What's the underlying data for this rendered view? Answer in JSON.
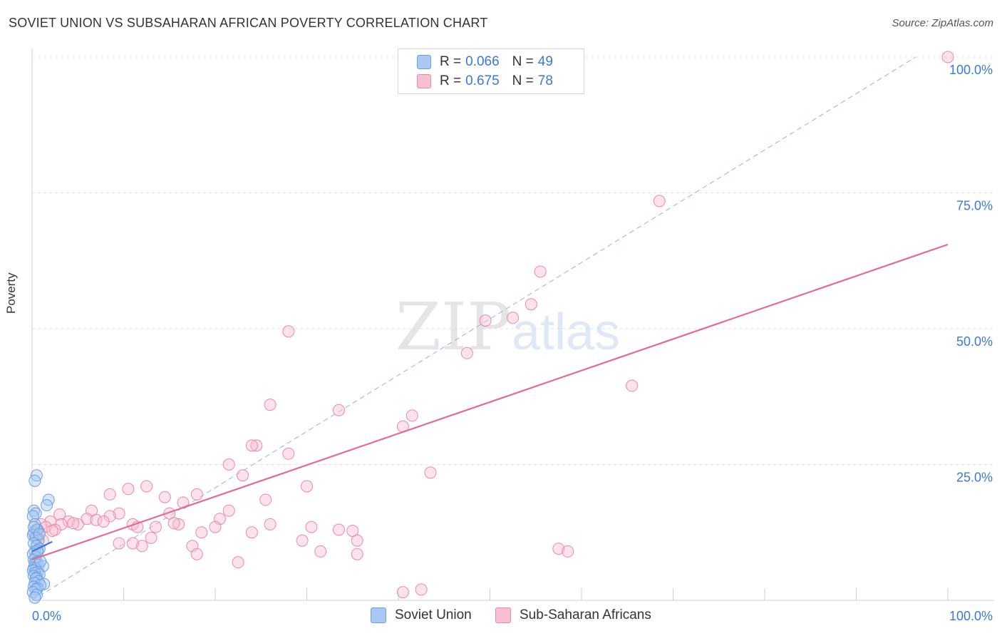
{
  "header": {
    "title": "SOVIET UNION VS SUBSAHARAN AFRICAN POVERTY CORRELATION CHART",
    "source": "Source: ZipAtlas.com"
  },
  "watermark": {
    "zip": "ZIP",
    "atlas": "atlas"
  },
  "legend": {
    "rows": [
      {
        "r_label": "R =",
        "r_value": "0.066",
        "n_label": "N =",
        "n_value": "49",
        "color": "#a9c8f3",
        "stroke": "#6b9fe0"
      },
      {
        "r_label": "R =",
        "r_value": "0.675",
        "n_label": "N =",
        "n_value": "78",
        "color": "#f8bfd0",
        "stroke": "#e88aa8"
      }
    ]
  },
  "bottom_legend": {
    "items": [
      {
        "label": "Soviet Union",
        "color": "#a9c8f3",
        "stroke": "#6b9fe0"
      },
      {
        "label": "Sub-Saharan Africans",
        "color": "#f8bfd0",
        "stroke": "#e88aa8"
      }
    ]
  },
  "chart_data": {
    "type": "scatter",
    "title": "SOVIET UNION VS SUBSAHARAN AFRICAN POVERTY CORRELATION CHART",
    "xlabel": "",
    "ylabel": "Poverty",
    "xlim": [
      0,
      100
    ],
    "ylim": [
      0,
      100
    ],
    "x_tick_labels": [
      "0.0%",
      "100.0%"
    ],
    "y_tick_labels": [
      "25.0%",
      "50.0%",
      "75.0%",
      "100.0%"
    ],
    "y_ticks": [
      25,
      50,
      75,
      100
    ],
    "grid": true,
    "colors": {
      "soviet": "#6b9fe0",
      "soviet_fill": "rgba(169,200,243,0.45)",
      "ssa": "#e88aa8",
      "ssa_fill": "rgba(248,191,208,0.45)",
      "ssa_line": "#e26b94",
      "soviet_line": "#3b78d6",
      "diag": "#8fb3ea",
      "tick_label": "#3b78d6"
    },
    "series": [
      {
        "name": "Soviet Union",
        "points": [
          [
            0.5,
            23.0
          ],
          [
            0.3,
            22.0
          ],
          [
            1.8,
            18.5
          ],
          [
            1.6,
            17.5
          ],
          [
            0.2,
            16.5
          ],
          [
            0.4,
            16.0
          ],
          [
            0.1,
            15.5
          ],
          [
            0.3,
            14.0
          ],
          [
            0.5,
            13.0
          ],
          [
            0.2,
            12.5
          ],
          [
            0.6,
            13.0
          ],
          [
            0.1,
            12.0
          ],
          [
            0.4,
            11.5
          ],
          [
            0.7,
            11.0
          ],
          [
            0.2,
            10.5
          ],
          [
            0.5,
            10.0
          ],
          [
            0.8,
            9.5
          ],
          [
            0.3,
            9.0
          ],
          [
            0.6,
            8.8
          ],
          [
            0.1,
            8.5
          ],
          [
            0.4,
            8.0
          ],
          [
            0.2,
            7.5
          ],
          [
            0.5,
            7.0
          ],
          [
            0.3,
            6.8
          ],
          [
            0.7,
            6.5
          ],
          [
            1.2,
            6.3
          ],
          [
            0.2,
            6.0
          ],
          [
            0.4,
            5.8
          ],
          [
            0.1,
            5.5
          ],
          [
            0.6,
            5.2
          ],
          [
            0.3,
            5.0
          ],
          [
            0.8,
            4.8
          ],
          [
            0.2,
            4.5
          ],
          [
            0.5,
            4.2
          ],
          [
            0.4,
            4.0
          ],
          [
            0.7,
            3.5
          ],
          [
            0.3,
            3.2
          ],
          [
            1.3,
            3.0
          ],
          [
            0.9,
            2.8
          ],
          [
            0.2,
            2.5
          ],
          [
            0.6,
            2.2
          ],
          [
            0.4,
            2.0
          ],
          [
            0.1,
            1.5
          ],
          [
            0.5,
            1.0
          ],
          [
            0.3,
            0.5
          ],
          [
            0.2,
            13.5
          ],
          [
            0.8,
            12.2
          ],
          [
            0.6,
            9.2
          ],
          [
            0.9,
            7.2
          ]
        ],
        "trend": [
          [
            0.0,
            9.0
          ],
          [
            2.2,
            10.8
          ]
        ]
      },
      {
        "name": "Sub-Saharan Africans",
        "points": [
          [
            100,
            100
          ],
          [
            68.5,
            73.5
          ],
          [
            55.5,
            60.5
          ],
          [
            54.5,
            54.5
          ],
          [
            52.5,
            52.0
          ],
          [
            49.5,
            51.5
          ],
          [
            28.0,
            49.5
          ],
          [
            47.5,
            45.5
          ],
          [
            65.5,
            39.5
          ],
          [
            26.0,
            36.0
          ],
          [
            33.5,
            35.0
          ],
          [
            41.5,
            34.0
          ],
          [
            40.5,
            32.0
          ],
          [
            24.5,
            28.5
          ],
          [
            24.0,
            28.5
          ],
          [
            28.0,
            27.0
          ],
          [
            21.5,
            25.0
          ],
          [
            43.5,
            23.5
          ],
          [
            23.0,
            23.0
          ],
          [
            30.0,
            21.0
          ],
          [
            12.5,
            21.0
          ],
          [
            10.5,
            20.5
          ],
          [
            8.5,
            19.5
          ],
          [
            18.0,
            19.5
          ],
          [
            14.5,
            19.0
          ],
          [
            25.5,
            18.5
          ],
          [
            16.5,
            18.0
          ],
          [
            21.5,
            16.5
          ],
          [
            9.5,
            16.0
          ],
          [
            6.5,
            16.5
          ],
          [
            15.0,
            16.0
          ],
          [
            8.5,
            15.5
          ],
          [
            3.0,
            15.8
          ],
          [
            20.5,
            15.0
          ],
          [
            6.0,
            15.0
          ],
          [
            7.0,
            14.8
          ],
          [
            4.0,
            14.5
          ],
          [
            3.2,
            14.0
          ],
          [
            5.0,
            14.0
          ],
          [
            11.0,
            14.0
          ],
          [
            16.0,
            14.0
          ],
          [
            11.5,
            13.5
          ],
          [
            13.5,
            13.5
          ],
          [
            2.0,
            14.5
          ],
          [
            1.0,
            14.0
          ],
          [
            1.5,
            13.5
          ],
          [
            0.5,
            13.0
          ],
          [
            0.8,
            12.5
          ],
          [
            2.5,
            13.0
          ],
          [
            20.0,
            13.5
          ],
          [
            30.5,
            13.5
          ],
          [
            33.5,
            13.0
          ],
          [
            35.0,
            12.8
          ],
          [
            18.5,
            12.5
          ],
          [
            24.0,
            12.5
          ],
          [
            0.3,
            12.0
          ],
          [
            1.2,
            11.0
          ],
          [
            13.0,
            11.5
          ],
          [
            29.5,
            11.0
          ],
          [
            35.5,
            11.0
          ],
          [
            12.0,
            10.0
          ],
          [
            9.5,
            10.5
          ],
          [
            17.5,
            10.0
          ],
          [
            11.0,
            10.5
          ],
          [
            57.5,
            9.5
          ],
          [
            58.5,
            9.0
          ],
          [
            31.5,
            9.0
          ],
          [
            35.5,
            8.5
          ],
          [
            18.0,
            8.5
          ],
          [
            22.5,
            7.0
          ],
          [
            40.5,
            1.5
          ],
          [
            42.5,
            2.0
          ],
          [
            4.5,
            14.2
          ],
          [
            7.8,
            14.5
          ],
          [
            2.2,
            12.8
          ],
          [
            15.5,
            14.2
          ],
          [
            26.0,
            14.0
          ],
          [
            0.6,
            11.5
          ]
        ],
        "trend": [
          [
            0.0,
            7.5
          ],
          [
            100,
            65.5
          ]
        ]
      }
    ],
    "reference_line": [
      [
        0,
        0
      ],
      [
        100,
        100
      ]
    ]
  }
}
